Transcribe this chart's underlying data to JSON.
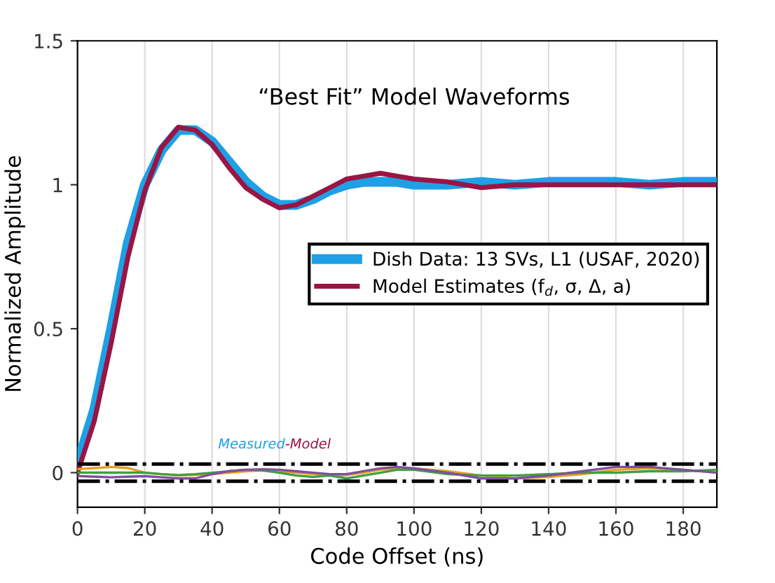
{
  "chart_data": {
    "type": "line",
    "title": "“Best Fit” Model Waveforms",
    "xlabel": "Code Offset (ns)",
    "ylabel": "Normalized Amplitude",
    "x": [
      0,
      5,
      10,
      15,
      20,
      25,
      30,
      35,
      40,
      45,
      50,
      55,
      60,
      65,
      70,
      75,
      80,
      85,
      90,
      95,
      100,
      110,
      120,
      130,
      140,
      150,
      160,
      170,
      180,
      190
    ],
    "series": [
      {
        "name": "Dish Data: 13 SVs, L1 (USAF, 2020)",
        "color": "#1ea0e6",
        "values": [
          0.03,
          0.22,
          0.5,
          0.8,
          1.0,
          1.12,
          1.19,
          1.19,
          1.15,
          1.08,
          1.01,
          0.96,
          0.93,
          0.93,
          0.95,
          0.98,
          1.0,
          1.01,
          1.01,
          1.01,
          1.0,
          1.0,
          1.01,
          1.0,
          1.01,
          1.01,
          1.01,
          1.0,
          1.01,
          1.01
        ]
      },
      {
        "name": "Model Estimates (f$_{d}$, σ, Δ, a)",
        "color": "#9a1444",
        "values": [
          0,
          0.18,
          0.45,
          0.75,
          0.98,
          1.13,
          1.2,
          1.19,
          1.14,
          1.06,
          0.99,
          0.95,
          0.92,
          0.93,
          0.96,
          0.99,
          1.02,
          1.03,
          1.04,
          1.03,
          1.02,
          1.01,
          0.99,
          1.0,
          1.0,
          1.0,
          1.0,
          1.0,
          1.0,
          1.0
        ]
      },
      {
        "color": "#e8a020",
        "values": [
          0.012,
          0.016,
          0.02,
          0.016,
          0.0,
          -0.005,
          -0.01,
          -0.008,
          -0.005,
          0.0,
          0.005,
          0.008,
          0.005,
          0.0,
          -0.005,
          -0.01,
          -0.008,
          0.0,
          0.01,
          0.015,
          0.015,
          0.005,
          -0.01,
          -0.02,
          -0.015,
          -0.005,
          0.01,
          0.015,
          0.01,
          0.0
        ]
      },
      {
        "color": "#40a040",
        "values": [
          0,
          0.0,
          0.0,
          0.0,
          0.0,
          -0.005,
          -0.008,
          -0.005,
          0.0,
          0.005,
          0.01,
          0.008,
          0.0,
          -0.01,
          -0.015,
          -0.01,
          -0.02,
          -0.01,
          0.0,
          0.01,
          0.01,
          -0.005,
          -0.01,
          -0.01,
          -0.005,
          0.0,
          0.0,
          0.005,
          0.005,
          0.01
        ]
      },
      {
        "color": "#7e4fa0",
        "values": [
          -0.012,
          -0.014,
          -0.016,
          -0.014,
          -0.012,
          -0.016,
          -0.02,
          -0.02,
          -0.005,
          0.005,
          0.01,
          0.012,
          0.01,
          0.005,
          0.0,
          -0.005,
          -0.005,
          0.005,
          0.015,
          0.02,
          0.015,
          0.0,
          -0.02,
          -0.02,
          -0.01,
          0.005,
          0.02,
          0.02,
          0.01,
          0.0
        ]
      }
    ],
    "xlim": [
      0,
      190
    ],
    "xticks": [
      0,
      20,
      40,
      60,
      80,
      100,
      120,
      140,
      160,
      180
    ],
    "ylim": [
      -0.12,
      1.5
    ],
    "yticks": [
      0,
      0.5,
      1,
      1.5
    ],
    "ref_lines": [
      {
        "axis": "y",
        "value": 0.03,
        "color": "#000000",
        "line_style": "dashdot"
      },
      {
        "axis": "y",
        "value": -0.03,
        "color": "#000000",
        "line_style": "dashdot"
      }
    ],
    "annotations": [
      "Measured",
      "-Model"
    ],
    "grid": "x",
    "legend": "center right",
    "marker": "none",
    "line_style": "solid"
  }
}
